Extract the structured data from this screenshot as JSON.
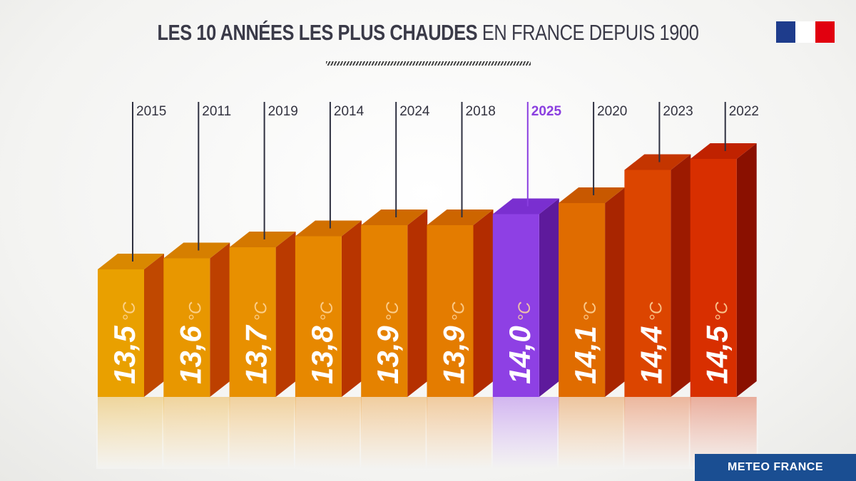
{
  "title": {
    "bold": "LES 10 ANNÉES LES PLUS CHAUDES",
    "light": "EN FRANCE DEPUIS 1900"
  },
  "brand": "METEO FRANCE",
  "chart_data": {
    "type": "bar",
    "title": "LES 10 ANNÉES LES PLUS CHAUDES EN FRANCE DEPUIS 1900",
    "categories": [
      "2015",
      "2011",
      "2019",
      "2014",
      "2024",
      "2018",
      "2025",
      "2020",
      "2023",
      "2022"
    ],
    "values": [
      13.5,
      13.6,
      13.7,
      13.8,
      13.9,
      13.9,
      14.0,
      14.1,
      14.4,
      14.5
    ],
    "value_labels": [
      "13,5",
      "13,6",
      "13,7",
      "13,8",
      "13,9",
      "13,9",
      "14,0",
      "14,1",
      "14,4",
      "14,5"
    ],
    "unit": "°C",
    "highlight": "2025",
    "colors": {
      "front": [
        "#e9a000",
        "#e89700",
        "#e89000",
        "#e78800",
        "#e58200",
        "#e47c00",
        "#8e40e4",
        "#e06c00",
        "#dc4500",
        "#d82f00"
      ],
      "side": [
        "#c04800",
        "#bd4000",
        "#ba3a00",
        "#b83500",
        "#b53000",
        "#b22c00",
        "#5e1a9c",
        "#a82500",
        "#9c1a00",
        "#8a1000"
      ],
      "top": [
        "#d98800",
        "#d67f00",
        "#d47800",
        "#d27000",
        "#cf6a00",
        "#cd6500",
        "#7a2fd0",
        "#c85800",
        "#c43500",
        "#c02200"
      ],
      "highlight_label": "#8a3ee0",
      "label": "#333340"
    },
    "ylim": [
      13.3,
      14.6
    ]
  }
}
